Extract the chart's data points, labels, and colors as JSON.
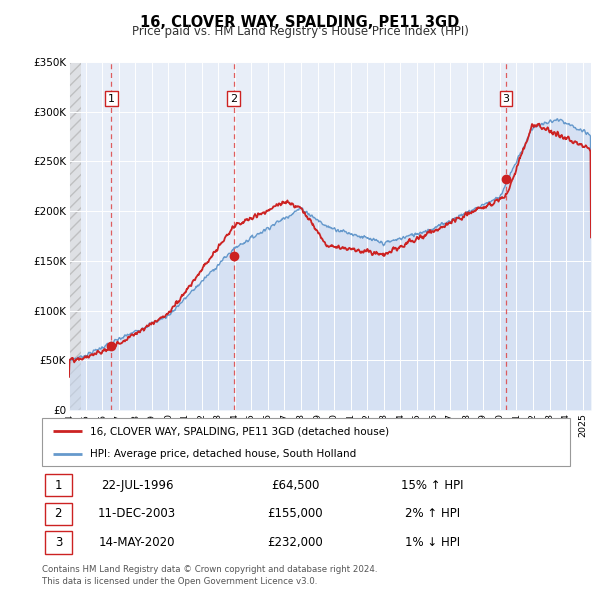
{
  "title": "16, CLOVER WAY, SPALDING, PE11 3GD",
  "subtitle": "Price paid vs. HM Land Registry's House Price Index (HPI)",
  "xlim_start": 1994.0,
  "xlim_end": 2025.5,
  "ylim_min": 0,
  "ylim_max": 350000,
  "yticks": [
    0,
    50000,
    100000,
    150000,
    200000,
    250000,
    300000,
    350000
  ],
  "ytick_labels": [
    "£0",
    "£50K",
    "£100K",
    "£150K",
    "£200K",
    "£250K",
    "£300K",
    "£350K"
  ],
  "sale_dates": [
    1996.55,
    2003.94,
    2020.37
  ],
  "sale_prices": [
    64500,
    155000,
    232000
  ],
  "sale_labels": [
    "1",
    "2",
    "3"
  ],
  "vline_color": "#dd4444",
  "vline_style": "--",
  "dot_color": "#cc2222",
  "hpi_line_color": "#6699cc",
  "price_line_color": "#cc2222",
  "hpi_fill_color": "#ddeeff",
  "legend_label_price": "16, CLOVER WAY, SPALDING, PE11 3GD (detached house)",
  "legend_label_hpi": "HPI: Average price, detached house, South Holland",
  "table_rows": [
    {
      "num": "1",
      "date": "22-JUL-1996",
      "price": "£64,500",
      "hpi": "15% ↑ HPI"
    },
    {
      "num": "2",
      "date": "11-DEC-2003",
      "price": "£155,000",
      "hpi": "2% ↑ HPI"
    },
    {
      "num": "3",
      "date": "14-MAY-2020",
      "price": "£232,000",
      "hpi": "1% ↓ HPI"
    }
  ],
  "footnote": "Contains HM Land Registry data © Crown copyright and database right 2024.\nThis data is licensed under the Open Government Licence v3.0.",
  "bg_color": "#ffffff",
  "plot_bg_color": "#e8eef8",
  "grid_color": "#ffffff",
  "label_box_color": "#ffffff",
  "label_box_edge": "#cc2222",
  "hatch_color": "#cccccc"
}
